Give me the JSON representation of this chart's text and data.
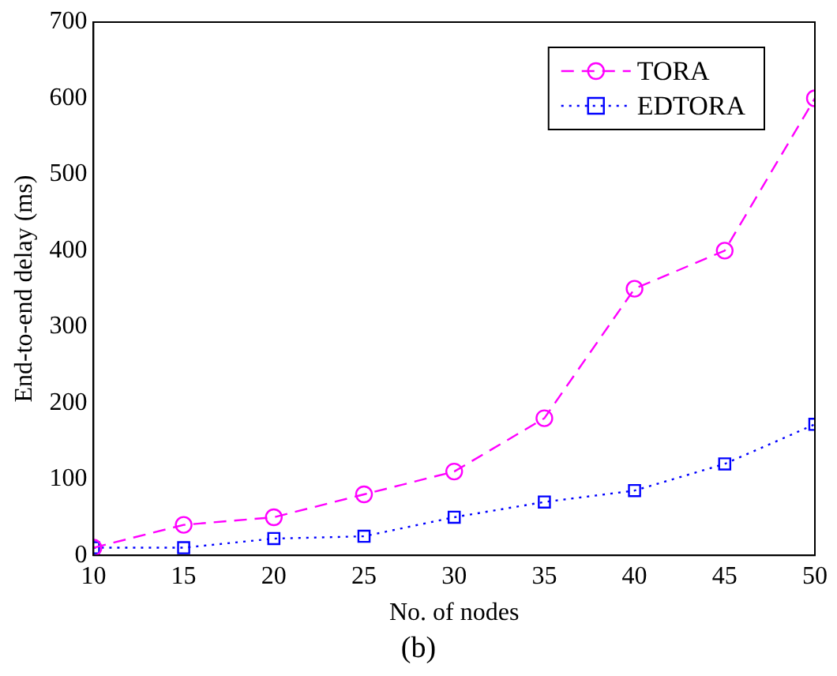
{
  "chart_data": {
    "type": "line",
    "xlabel": "No. of nodes",
    "ylabel": "End-to-end delay (ms)",
    "x": [
      10,
      15,
      20,
      25,
      30,
      35,
      40,
      45,
      50
    ],
    "series": [
      {
        "name": "TORA",
        "color": "#ff00ff",
        "marker": "circle",
        "line_style": "dashed",
        "values": [
          10,
          40,
          50,
          80,
          110,
          180,
          350,
          400,
          600
        ]
      },
      {
        "name": "EDTORA",
        "color": "#0000ff",
        "marker": "square",
        "line_style": "dotted",
        "values": [
          10,
          10,
          22,
          25,
          50,
          70,
          85,
          120,
          172
        ]
      }
    ],
    "xlim": [
      10,
      50
    ],
    "xticks": [
      10,
      15,
      20,
      25,
      30,
      35,
      40,
      45,
      50
    ],
    "ylim": [
      0,
      700
    ],
    "yticks": [
      0,
      100,
      200,
      300,
      400,
      500,
      600,
      700
    ],
    "grid": false,
    "legend": "top right",
    "annotations": [
      "(b)"
    ]
  }
}
